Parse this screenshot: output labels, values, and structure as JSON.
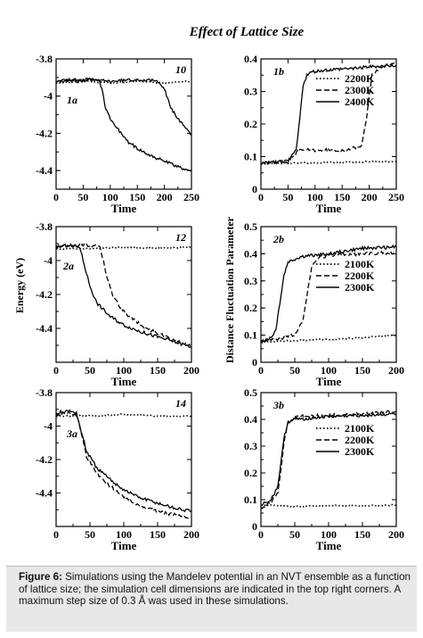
{
  "figure": {
    "title": "Effect of Lattice Size",
    "caption_label": "Figure 6:",
    "caption_text": "Simulations using the Mandelev potential in an NVT ensemble as a function of lattice size; the simulation cell dimensions are indicated in the top right corners. A maximum step size of 0.3 Å was used in these simulations."
  },
  "left_ylabel": "Energy (eV)",
  "right_ylabel": "Distance Fluctuation Parameter",
  "colors": {
    "line": "#000000",
    "axis": "#000000",
    "caption_bg": "#e8e8e8"
  },
  "chart_data": [
    {
      "id": "1a",
      "type": "line",
      "panel_label": "1a",
      "size_label": "10",
      "xlabel": "Time",
      "xlim": [
        0,
        250
      ],
      "ylim": [
        -4.5,
        -3.8
      ],
      "xticks": [
        0,
        50,
        100,
        150,
        200,
        250
      ],
      "yticks": [
        -3.8,
        -4,
        -4.2,
        -4.4
      ],
      "ytick_labels": [
        "-3.8",
        "-4",
        "-4.2",
        "-4.4"
      ],
      "series": [
        {
          "style": "solid",
          "x": [
            0,
            20,
            40,
            60,
            80,
            85,
            90,
            100,
            115,
            130,
            150,
            175,
            200,
            225,
            250
          ],
          "y": [
            -3.92,
            -3.91,
            -3.92,
            -3.91,
            -3.92,
            -3.96,
            -4.05,
            -4.12,
            -4.18,
            -4.24,
            -4.28,
            -4.32,
            -4.35,
            -4.38,
            -4.4
          ]
        },
        {
          "style": "solid",
          "x": [
            0,
            50,
            100,
            150,
            190,
            200,
            210,
            220,
            235,
            250
          ],
          "y": [
            -3.92,
            -3.91,
            -3.92,
            -3.91,
            -3.92,
            -3.96,
            -4.05,
            -4.1,
            -4.16,
            -4.21
          ]
        },
        {
          "style": "dotted",
          "x": [
            0,
            50,
            100,
            150,
            200,
            250
          ],
          "y": [
            -3.93,
            -3.92,
            -3.93,
            -3.92,
            -3.93,
            -3.92
          ]
        }
      ]
    },
    {
      "id": "1b",
      "type": "line",
      "panel_label": "1b",
      "xlabel": "Time",
      "xlim": [
        0,
        250
      ],
      "ylim": [
        0,
        0.4
      ],
      "xticks": [
        0,
        50,
        100,
        150,
        200,
        250
      ],
      "yticks": [
        0,
        0.1,
        0.2,
        0.3,
        0.4
      ],
      "ytick_labels": [
        "0",
        "0.1",
        "0.2",
        "0.3",
        "0.4"
      ],
      "legend": [
        {
          "name": "2200K",
          "style": "dotted"
        },
        {
          "name": "2300K",
          "style": "dashed"
        },
        {
          "name": "2400K",
          "style": "solid"
        }
      ],
      "series": [
        {
          "name": "2200K",
          "style": "dotted",
          "x": [
            0,
            50,
            100,
            150,
            200,
            250
          ],
          "y": [
            0.078,
            0.08,
            0.081,
            0.083,
            0.084,
            0.085
          ]
        },
        {
          "name": "2300K",
          "style": "dashed",
          "x": [
            0,
            40,
            60,
            70,
            150,
            185,
            195,
            205,
            220,
            250
          ],
          "y": [
            0.08,
            0.085,
            0.1,
            0.12,
            0.12,
            0.13,
            0.22,
            0.35,
            0.375,
            0.385
          ]
        },
        {
          "name": "2400K",
          "style": "solid",
          "x": [
            0,
            50,
            65,
            72,
            78,
            85,
            95,
            120,
            160,
            200,
            250
          ],
          "y": [
            0.08,
            0.085,
            0.12,
            0.22,
            0.32,
            0.35,
            0.36,
            0.365,
            0.37,
            0.375,
            0.38
          ]
        }
      ]
    },
    {
      "id": "2a",
      "type": "line",
      "panel_label": "2a",
      "size_label": "12",
      "xlabel": "Time",
      "xlim": [
        0,
        200
      ],
      "ylim": [
        -4.6,
        -3.8
      ],
      "xticks": [
        0,
        50,
        100,
        150,
        200
      ],
      "yticks": [
        -3.8,
        -4,
        -4.2,
        -4.4
      ],
      "ytick_labels": [
        "-3.8",
        "-4",
        "-4.2",
        "-4.4"
      ],
      "series": [
        {
          "style": "solid",
          "x": [
            0,
            20,
            35,
            40,
            50,
            60,
            80,
            100,
            125,
            150,
            175,
            200
          ],
          "y": [
            -3.92,
            -3.91,
            -3.92,
            -4.0,
            -4.15,
            -4.25,
            -4.33,
            -4.38,
            -4.42,
            -4.45,
            -4.48,
            -4.51
          ]
        },
        {
          "style": "dashed",
          "x": [
            0,
            40,
            65,
            70,
            75,
            85,
            100,
            125,
            150,
            175,
            200
          ],
          "y": [
            -3.92,
            -3.91,
            -3.92,
            -4.0,
            -4.1,
            -4.22,
            -4.3,
            -4.38,
            -4.43,
            -4.47,
            -4.5
          ]
        },
        {
          "style": "dotted",
          "x": [
            0,
            50,
            100,
            150,
            200
          ],
          "y": [
            -3.93,
            -3.93,
            -3.92,
            -3.93,
            -3.92
          ]
        }
      ]
    },
    {
      "id": "2b",
      "type": "line",
      "panel_label": "2b",
      "xlabel": "Time",
      "xlim": [
        0,
        200
      ],
      "ylim": [
        0,
        0.5
      ],
      "xticks": [
        0,
        50,
        100,
        150,
        200
      ],
      "yticks": [
        0,
        0.1,
        0.2,
        0.3,
        0.4,
        0.5
      ],
      "ytick_labels": [
        "0",
        "0.1",
        "0.2",
        "0.3",
        "0.4",
        "0.5"
      ],
      "legend": [
        {
          "name": "2100K",
          "style": "dotted"
        },
        {
          "name": "2200K",
          "style": "dashed"
        },
        {
          "name": "2300K",
          "style": "solid"
        }
      ],
      "series": [
        {
          "name": "2100K",
          "style": "dotted",
          "x": [
            0,
            50,
            100,
            150,
            200
          ],
          "y": [
            0.075,
            0.08,
            0.085,
            0.09,
            0.1
          ]
        },
        {
          "name": "2200K",
          "style": "dashed",
          "x": [
            0,
            20,
            50,
            62,
            68,
            75,
            85,
            100,
            150,
            200
          ],
          "y": [
            0.075,
            0.085,
            0.1,
            0.15,
            0.25,
            0.35,
            0.385,
            0.395,
            0.4,
            0.405
          ]
        },
        {
          "name": "2300K",
          "style": "solid",
          "x": [
            0,
            15,
            22,
            28,
            34,
            40,
            60,
            100,
            150,
            200
          ],
          "y": [
            0.08,
            0.09,
            0.12,
            0.22,
            0.32,
            0.37,
            0.39,
            0.4,
            0.42,
            0.425
          ]
        }
      ]
    },
    {
      "id": "3a",
      "type": "line",
      "panel_label": "3a",
      "size_label": "14",
      "xlabel": "Time",
      "xlim": [
        0,
        200
      ],
      "ylim": [
        -4.6,
        -3.8
      ],
      "xticks": [
        0,
        50,
        100,
        150,
        200
      ],
      "yticks": [
        -3.8,
        -4,
        -4.2,
        -4.4
      ],
      "ytick_labels": [
        "-3.8",
        "-4",
        "-4.2",
        "-4.4"
      ],
      "series": [
        {
          "style": "solid",
          "x": [
            0,
            20,
            30,
            35,
            45,
            60,
            80,
            100,
            125,
            150,
            175,
            200
          ],
          "y": [
            -3.92,
            -3.91,
            -3.92,
            -4.0,
            -4.15,
            -4.25,
            -4.32,
            -4.38,
            -4.43,
            -4.46,
            -4.49,
            -4.51
          ]
        },
        {
          "style": "dashed",
          "x": [
            0,
            20,
            30,
            35,
            45,
            60,
            80,
            100,
            125,
            150,
            175,
            200
          ],
          "y": [
            -3.93,
            -3.92,
            -3.93,
            -4.0,
            -4.18,
            -4.28,
            -4.36,
            -4.42,
            -4.48,
            -4.51,
            -4.53,
            -4.55
          ]
        },
        {
          "style": "dotted",
          "x": [
            0,
            50,
            100,
            150,
            200
          ],
          "y": [
            -3.94,
            -3.94,
            -3.93,
            -3.94,
            -3.94
          ]
        }
      ]
    },
    {
      "id": "3b",
      "type": "line",
      "panel_label": "3b",
      "xlabel": "Time",
      "xlim": [
        0,
        200
      ],
      "ylim": [
        0,
        0.5
      ],
      "xticks": [
        0,
        50,
        100,
        150,
        200
      ],
      "yticks": [
        0,
        0.1,
        0.2,
        0.3,
        0.4,
        0.5
      ],
      "ytick_labels": [
        "0",
        "0.1",
        "0.2",
        "0.3",
        "0.4",
        "0.5"
      ],
      "legend": [
        {
          "name": "2100K",
          "style": "dotted"
        },
        {
          "name": "2200K",
          "style": "dashed"
        },
        {
          "name": "2300K",
          "style": "solid"
        }
      ],
      "series": [
        {
          "name": "2100K",
          "style": "dotted",
          "x": [
            0,
            50,
            100,
            150,
            200
          ],
          "y": [
            0.08,
            0.075,
            0.078,
            0.077,
            0.08
          ]
        },
        {
          "name": "2200K",
          "style": "dashed",
          "x": [
            0,
            15,
            25,
            30,
            35,
            40,
            50,
            100,
            150,
            200
          ],
          "y": [
            0.07,
            0.09,
            0.13,
            0.22,
            0.33,
            0.39,
            0.41,
            0.415,
            0.42,
            0.43
          ]
        },
        {
          "name": "2300K",
          "style": "solid",
          "x": [
            0,
            15,
            25,
            30,
            35,
            40,
            50,
            100,
            150,
            200
          ],
          "y": [
            0.08,
            0.1,
            0.15,
            0.25,
            0.34,
            0.39,
            0.4,
            0.41,
            0.415,
            0.42
          ]
        }
      ]
    }
  ]
}
